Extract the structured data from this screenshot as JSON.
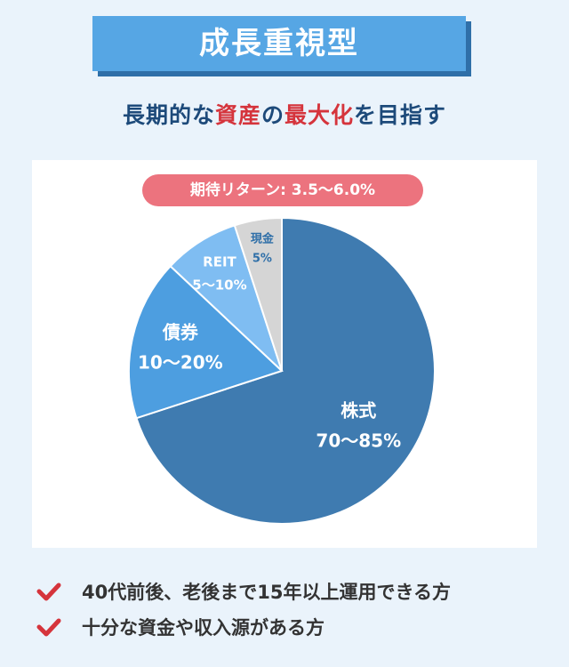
{
  "header": {
    "title": "成長重視型"
  },
  "subtitle": {
    "part1": "長期的な",
    "part2": "資産",
    "part3": "の",
    "part4": "最大化",
    "part5": "を目指す"
  },
  "badge": {
    "label": "期待リターン: 3.5〜6.0%"
  },
  "colors": {
    "stocks": "#3f7bb0",
    "bonds": "#4d9ee0",
    "reit": "#7fbdf2",
    "cash": "#d5d5d5",
    "accent": "#d5343c",
    "check": "#d5343c"
  },
  "chart_data": {
    "type": "pie",
    "slices": [
      {
        "name": "株式",
        "range": "70〜85%",
        "value": 70,
        "color": "#3f7bb0"
      },
      {
        "name": "債券",
        "range": "10〜20%",
        "value": 17,
        "color": "#4d9ee0"
      },
      {
        "name": "REIT",
        "range": "5〜10%",
        "value": 8,
        "color": "#7fbdf2"
      },
      {
        "name": "現金",
        "range": "5%",
        "value": 5,
        "color": "#d5d5d5"
      }
    ]
  },
  "bullets": [
    {
      "text": "40代前後、老後まで15年以上運用できる方",
      "icon": "check-icon"
    },
    {
      "text": "十分な資金や収入源がある方",
      "icon": "check-icon"
    }
  ]
}
